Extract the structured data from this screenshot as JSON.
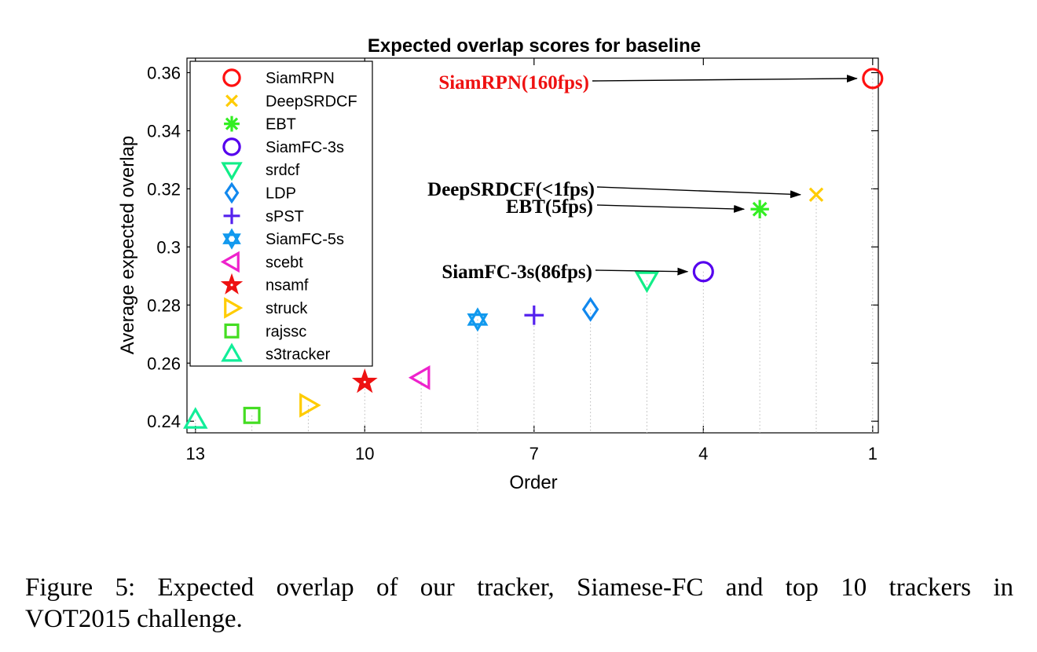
{
  "chart_data": {
    "type": "scatter",
    "title": "Expected overlap scores for baseline",
    "xlabel": "Order",
    "ylabel": "Average expected overlap",
    "xlim": [
      13.15,
      0.9
    ],
    "ylim": [
      0.236,
      0.365
    ],
    "x_reversed": true,
    "xticks": [
      13,
      10,
      7,
      4,
      1
    ],
    "xtick_labels": [
      "13",
      "10",
      "7",
      "4",
      "1"
    ],
    "yticks": [
      0.24,
      0.26,
      0.28,
      0.3,
      0.32,
      0.34,
      0.36
    ],
    "ytick_labels": [
      "0.24",
      "0.26",
      "0.28",
      "0.3",
      "0.32",
      "0.34",
      "0.36"
    ],
    "grid": "dotted vertical drop lines from each point",
    "legend_position": "top-left",
    "series": [
      {
        "name": "SiamRPN",
        "marker": "circle",
        "color": "#ff1010",
        "x": 1,
        "y": 0.358
      },
      {
        "name": "DeepSRDCF",
        "marker": "x",
        "color": "#ffcc00",
        "x": 2,
        "y": 0.318
      },
      {
        "name": "EBT",
        "marker": "asterisk",
        "color": "#33ee22",
        "x": 3,
        "y": 0.313
      },
      {
        "name": "SiamFC-3s",
        "marker": "circle",
        "color": "#5500ee",
        "x": 4,
        "y": 0.2915
      },
      {
        "name": "srdcf",
        "marker": "triangle-down",
        "color": "#11ee88",
        "x": 5,
        "y": 0.2885
      },
      {
        "name": "LDP",
        "marker": "diamond",
        "color": "#1188ee",
        "x": 6,
        "y": 0.2785
      },
      {
        "name": "sPST",
        "marker": "plus",
        "color": "#5522ee",
        "x": 7,
        "y": 0.2765
      },
      {
        "name": "SiamFC-5s",
        "marker": "hexagram",
        "color": "#1199ee",
        "x": 8,
        "y": 0.275
      },
      {
        "name": "scebt",
        "marker": "triangle-left",
        "color": "#ee22cc",
        "x": 9,
        "y": 0.255
      },
      {
        "name": "nsamf",
        "marker": "pentagram",
        "color": "#ee1111",
        "x": 10,
        "y": 0.2535
      },
      {
        "name": "struck",
        "marker": "triangle-right",
        "color": "#ffcc00",
        "x": 11,
        "y": 0.2455
      },
      {
        "name": "rajssc",
        "marker": "square",
        "color": "#44dd22",
        "x": 12,
        "y": 0.242
      },
      {
        "name": "s3tracker",
        "marker": "triangle-up",
        "color": "#11ee99",
        "x": 13,
        "y": 0.2405
      }
    ],
    "annotations": [
      {
        "text": "SiamRPN(160fps)",
        "target": "SiamRPN",
        "color": "#ee1111"
      },
      {
        "text": "DeepSRDCF(<1fps)",
        "target": "DeepSRDCF",
        "color": "#000000"
      },
      {
        "text": "EBT(5fps)",
        "target": "EBT",
        "color": "#000000"
      },
      {
        "text": "SiamFC-3s(86fps)",
        "target": "SiamFC-3s",
        "color": "#000000"
      }
    ]
  },
  "caption": {
    "line1": "Figure 5:  Expected overlap of our tracker, Siamese-FC and top 10 trackers in",
    "line2": "VOT2015 challenge."
  }
}
